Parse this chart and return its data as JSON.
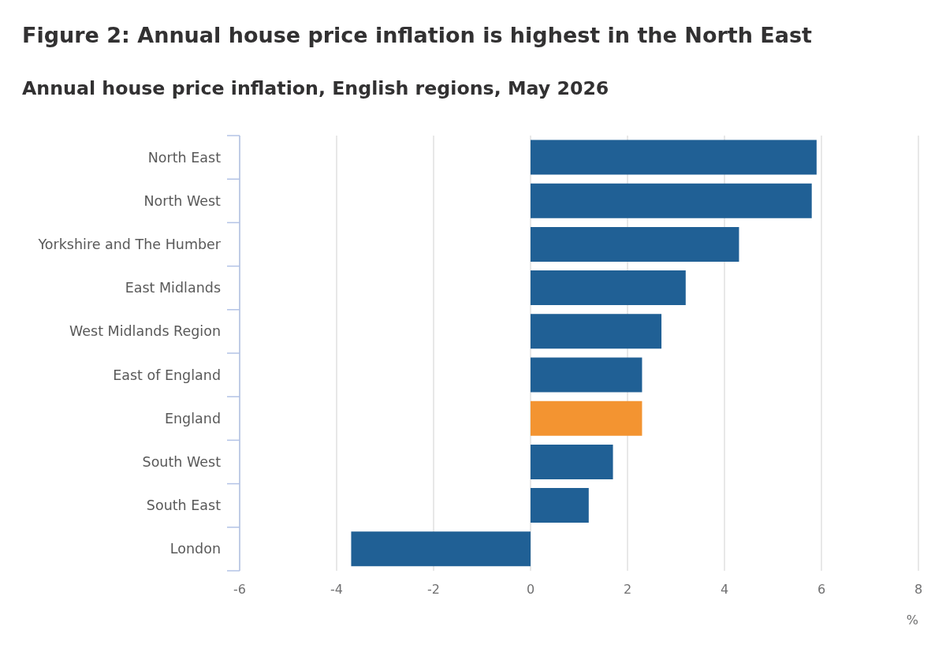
{
  "chart_data": {
    "type": "bar",
    "orientation": "horizontal",
    "title": "Figure 2: Annual house price inflation is highest in the North East",
    "subtitle": "Annual house price inflation, English regions, May 2026",
    "xlabel": "%",
    "categories": [
      "North East",
      "North West",
      "Yorkshire and The Humber",
      "East Midlands",
      "West Midlands Region",
      "East of England",
      "England",
      "South West",
      "South East",
      "London"
    ],
    "values": [
      5.9,
      5.8,
      4.3,
      3.2,
      2.7,
      2.3,
      2.3,
      1.7,
      1.2,
      -3.7
    ],
    "colors": [
      "#206095",
      "#206095",
      "#206095",
      "#206095",
      "#206095",
      "#206095",
      "#f39431",
      "#206095",
      "#206095",
      "#206095"
    ],
    "xlim": [
      -6,
      8
    ],
    "xticks": [
      -6,
      -4,
      -2,
      0,
      2,
      4,
      6,
      8
    ],
    "grid": "x"
  }
}
